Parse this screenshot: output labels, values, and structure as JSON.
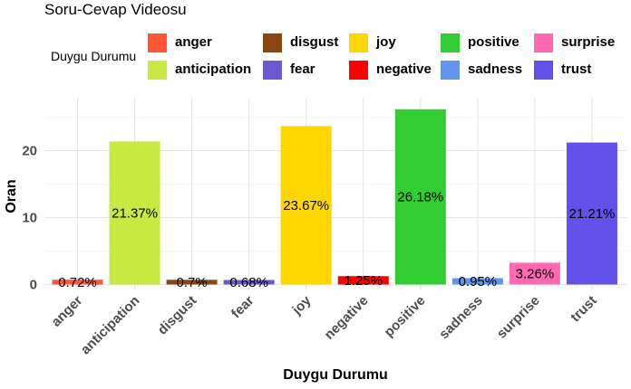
{
  "chart_data": {
    "type": "bar",
    "title": "Soru-Cevap Videosu",
    "xlabel": "Duygu Durumu",
    "ylabel": "Oran",
    "legend_title": "Duygu Durumu",
    "legend_position": "top",
    "grid": true,
    "ylim": [
      0,
      27
    ],
    "yticks": [
      0,
      10,
      20
    ],
    "categories": [
      "anger",
      "anticipation",
      "disgust",
      "fear",
      "joy",
      "negative",
      "positive",
      "sadness",
      "surprise",
      "trust"
    ],
    "values": [
      0.72,
      21.37,
      0.7,
      0.68,
      23.67,
      1.25,
      26.18,
      0.95,
      3.26,
      21.21
    ],
    "labels": [
      "0.72%",
      "21.37%",
      "0.7%",
      "0.68%",
      "23.67%",
      "1.25%",
      "26.18%",
      "0.95%",
      "3.26%",
      "21.21%"
    ],
    "colors": [
      "#FF5733",
      "#C7E942",
      "#8B4513",
      "#6A5ACD",
      "#FFD700",
      "#FF0000",
      "#32CD32",
      "#6495ED",
      "#FF69B4",
      "#6251E8"
    ]
  }
}
